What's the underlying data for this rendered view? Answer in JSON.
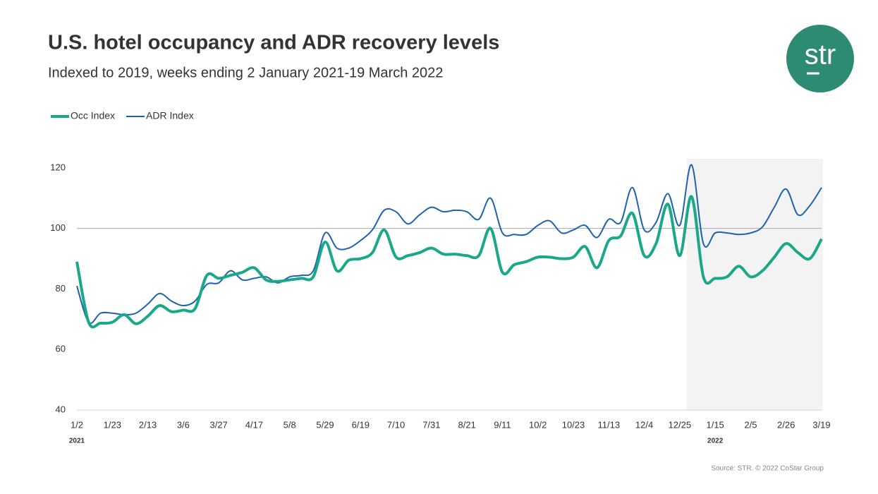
{
  "chart_data": {
    "type": "line",
    "title": "U.S. hotel occupancy and ADR recovery levels",
    "subtitle": "Indexed to 2019, weeks ending 2 January 2021-19 March 2022",
    "logo": "str",
    "source": "Source: STR. © 2022 CoStar Group",
    "categories": [
      "1/2",
      null,
      null,
      "1/23",
      null,
      null,
      "2/13",
      null,
      null,
      "3/6",
      null,
      null,
      "3/27",
      null,
      null,
      "4/17",
      null,
      null,
      "5/8",
      null,
      null,
      "5/29",
      null,
      null,
      "6/19",
      null,
      null,
      "7/10",
      null,
      null,
      "7/31",
      null,
      null,
      "8/21",
      null,
      null,
      "9/11",
      null,
      null,
      "10/2",
      null,
      null,
      "10/23",
      null,
      null,
      "11/13",
      null,
      null,
      "12/4",
      null,
      null,
      "12/25",
      null,
      null,
      "1/15",
      null,
      null,
      "2/5",
      null,
      null,
      "2/26",
      null,
      null,
      "3/19"
    ],
    "year_labels": [
      "2021",
      "2022"
    ],
    "series": [
      {
        "name": "Occ Index",
        "color": "#1aa88a",
        "values": [
          89,
          69,
          68.7,
          69,
          71.5,
          68.5,
          71,
          74.5,
          72.5,
          73,
          73.5,
          84.5,
          83.5,
          84.5,
          85.5,
          87,
          83,
          82.5,
          83,
          83.5,
          84,
          95.5,
          86,
          89.5,
          90,
          92,
          99.5,
          90.5,
          91,
          92,
          93.5,
          91.5,
          91.5,
          91,
          91,
          100,
          85.5,
          88,
          89,
          90.5,
          90.5,
          90,
          90.5,
          94,
          87,
          96,
          97.5,
          105,
          91,
          95,
          108,
          91,
          110.5,
          84,
          83.5,
          84,
          87.5,
          84,
          86,
          90.5,
          95,
          92,
          90,
          96.5
        ]
      },
      {
        "name": "ADR Index",
        "color": "#1f62ae",
        "values": [
          81,
          69,
          72,
          72,
          71.5,
          72,
          75,
          78.5,
          76,
          74.5,
          76,
          81.5,
          82,
          86,
          83,
          83.5,
          84,
          82,
          84,
          84.5,
          86,
          98.5,
          93.5,
          93.5,
          96,
          99.5,
          106,
          105.5,
          101.5,
          104.5,
          107,
          105.5,
          106,
          105.5,
          103,
          110,
          98.5,
          98,
          98,
          101,
          102.5,
          98.5,
          99.5,
          101,
          97,
          103,
          102,
          113.5,
          99.5,
          102,
          111.5,
          101,
          121,
          95,
          98.5,
          98.5,
          98,
          98.5,
          100.5,
          107,
          113,
          104.5,
          107.5,
          113.5
        ]
      }
    ],
    "ylim": [
      40,
      123
    ],
    "yticks": [
      40,
      60,
      80,
      100,
      120
    ],
    "reference_line": 100,
    "legend": "top-left",
    "smooth": true
  }
}
